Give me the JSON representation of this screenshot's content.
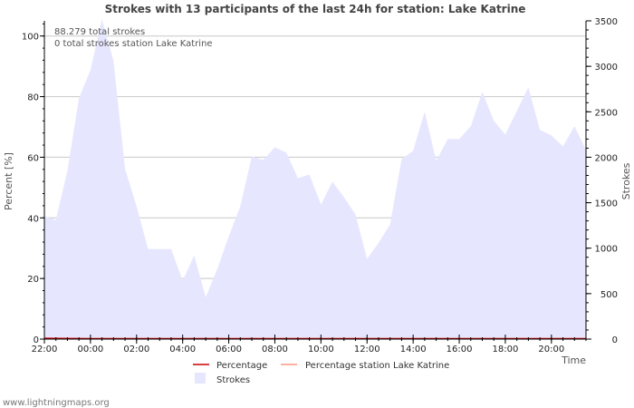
{
  "chart_data": {
    "type": "area",
    "title": "Strokes with 13 participants of the last 24h for station: Lake Katrine",
    "xlabel": "Time",
    "ylabel_left": "Percent   [%]",
    "ylabel_right": "Strokes",
    "x_tick_labels": [
      "22:00",
      "00:00",
      "02:00",
      "04:00",
      "06:00",
      "08:00",
      "10:00",
      "12:00",
      "14:00",
      "16:00",
      "18:00",
      "20:00"
    ],
    "x_tick_hours": [
      0,
      2,
      4,
      6,
      8,
      10,
      12,
      14,
      16,
      18,
      20,
      22
    ],
    "x_range_hours": [
      0,
      23.5
    ],
    "y_left_ticks": [
      0,
      20,
      40,
      60,
      80,
      100
    ],
    "y_left_ylim": [
      0,
      105
    ],
    "y_right_ticks": [
      0,
      500,
      1000,
      1500,
      2000,
      2500,
      3000,
      3500
    ],
    "y_right_ylim": [
      0,
      3500
    ],
    "notes": [
      "88.279 total strokes",
      "0 total strokes station Lake Katrine"
    ],
    "series": [
      {
        "name": "Strokes",
        "axis": "right",
        "color": "#e6e6ff",
        "x_hours": [
          0,
          0.5,
          1,
          1.5,
          2,
          2.5,
          3,
          3.5,
          4,
          4.5,
          5,
          5.5,
          6,
          6.5,
          7,
          7.5,
          8,
          8.5,
          9,
          9.5,
          10,
          10.5,
          11,
          11.5,
          12,
          12.5,
          13,
          13.5,
          14,
          14.5,
          15,
          15.5,
          16,
          16.5,
          17,
          17.5,
          18,
          18.5,
          19,
          19.5,
          20,
          20.5,
          21,
          21.5,
          22,
          22.5,
          23,
          23.5
        ],
        "values": [
          1350,
          1310,
          1850,
          2650,
          2960,
          3520,
          3060,
          1870,
          1460,
          990,
          990,
          990,
          640,
          920,
          460,
          770,
          1130,
          1460,
          2010,
          1970,
          2110,
          2050,
          1770,
          1810,
          1480,
          1730,
          1560,
          1370,
          880,
          1060,
          1260,
          1980,
          2070,
          2500,
          1960,
          2200,
          2200,
          2340,
          2720,
          2400,
          2250,
          2510,
          2770,
          2300,
          2240,
          2120,
          2340,
          2080
        ]
      },
      {
        "name": "Percentage",
        "axis": "left",
        "color": "#cc0000",
        "x_hours": [
          0,
          2,
          4,
          6,
          8,
          10,
          12,
          14,
          16,
          18,
          20,
          22,
          23.5
        ],
        "values": [
          0.3,
          0.2,
          0.2,
          0.2,
          0.2,
          0.2,
          0.2,
          0.2,
          0.2,
          0.2,
          0.2,
          0.2,
          0.2
        ]
      },
      {
        "name": "Percentage station Lake Katrine",
        "axis": "left",
        "color": "#ff9980",
        "x_hours": [
          0,
          23.5
        ],
        "values": [
          0,
          0
        ]
      }
    ],
    "legend": [
      "Percentage",
      "Percentage station Lake Katrine",
      "Strokes"
    ]
  },
  "footer": "www.lightningmaps.org"
}
